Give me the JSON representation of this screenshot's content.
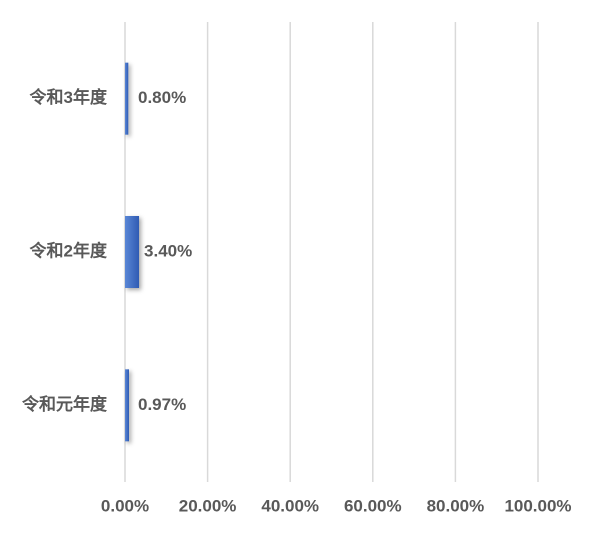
{
  "chart_data": {
    "type": "hbar",
    "categories": [
      "令和3年度",
      "令和2年度",
      "令和元年度"
    ],
    "values": [
      0.8,
      3.4,
      0.97
    ],
    "value_labels": [
      "0.80%",
      "3.40%",
      "0.97%"
    ],
    "color": "#4472c4",
    "xlim": [
      0,
      100
    ],
    "xticks": [
      {
        "value": 0,
        "label": "0.00%"
      },
      {
        "value": 20,
        "label": "20.00%"
      },
      {
        "value": 40,
        "label": "40.00%"
      },
      {
        "value": 60,
        "label": "60.00%"
      },
      {
        "value": 80,
        "label": "80.00%"
      },
      {
        "value": 100,
        "label": "100.00%"
      }
    ],
    "grid": true
  }
}
